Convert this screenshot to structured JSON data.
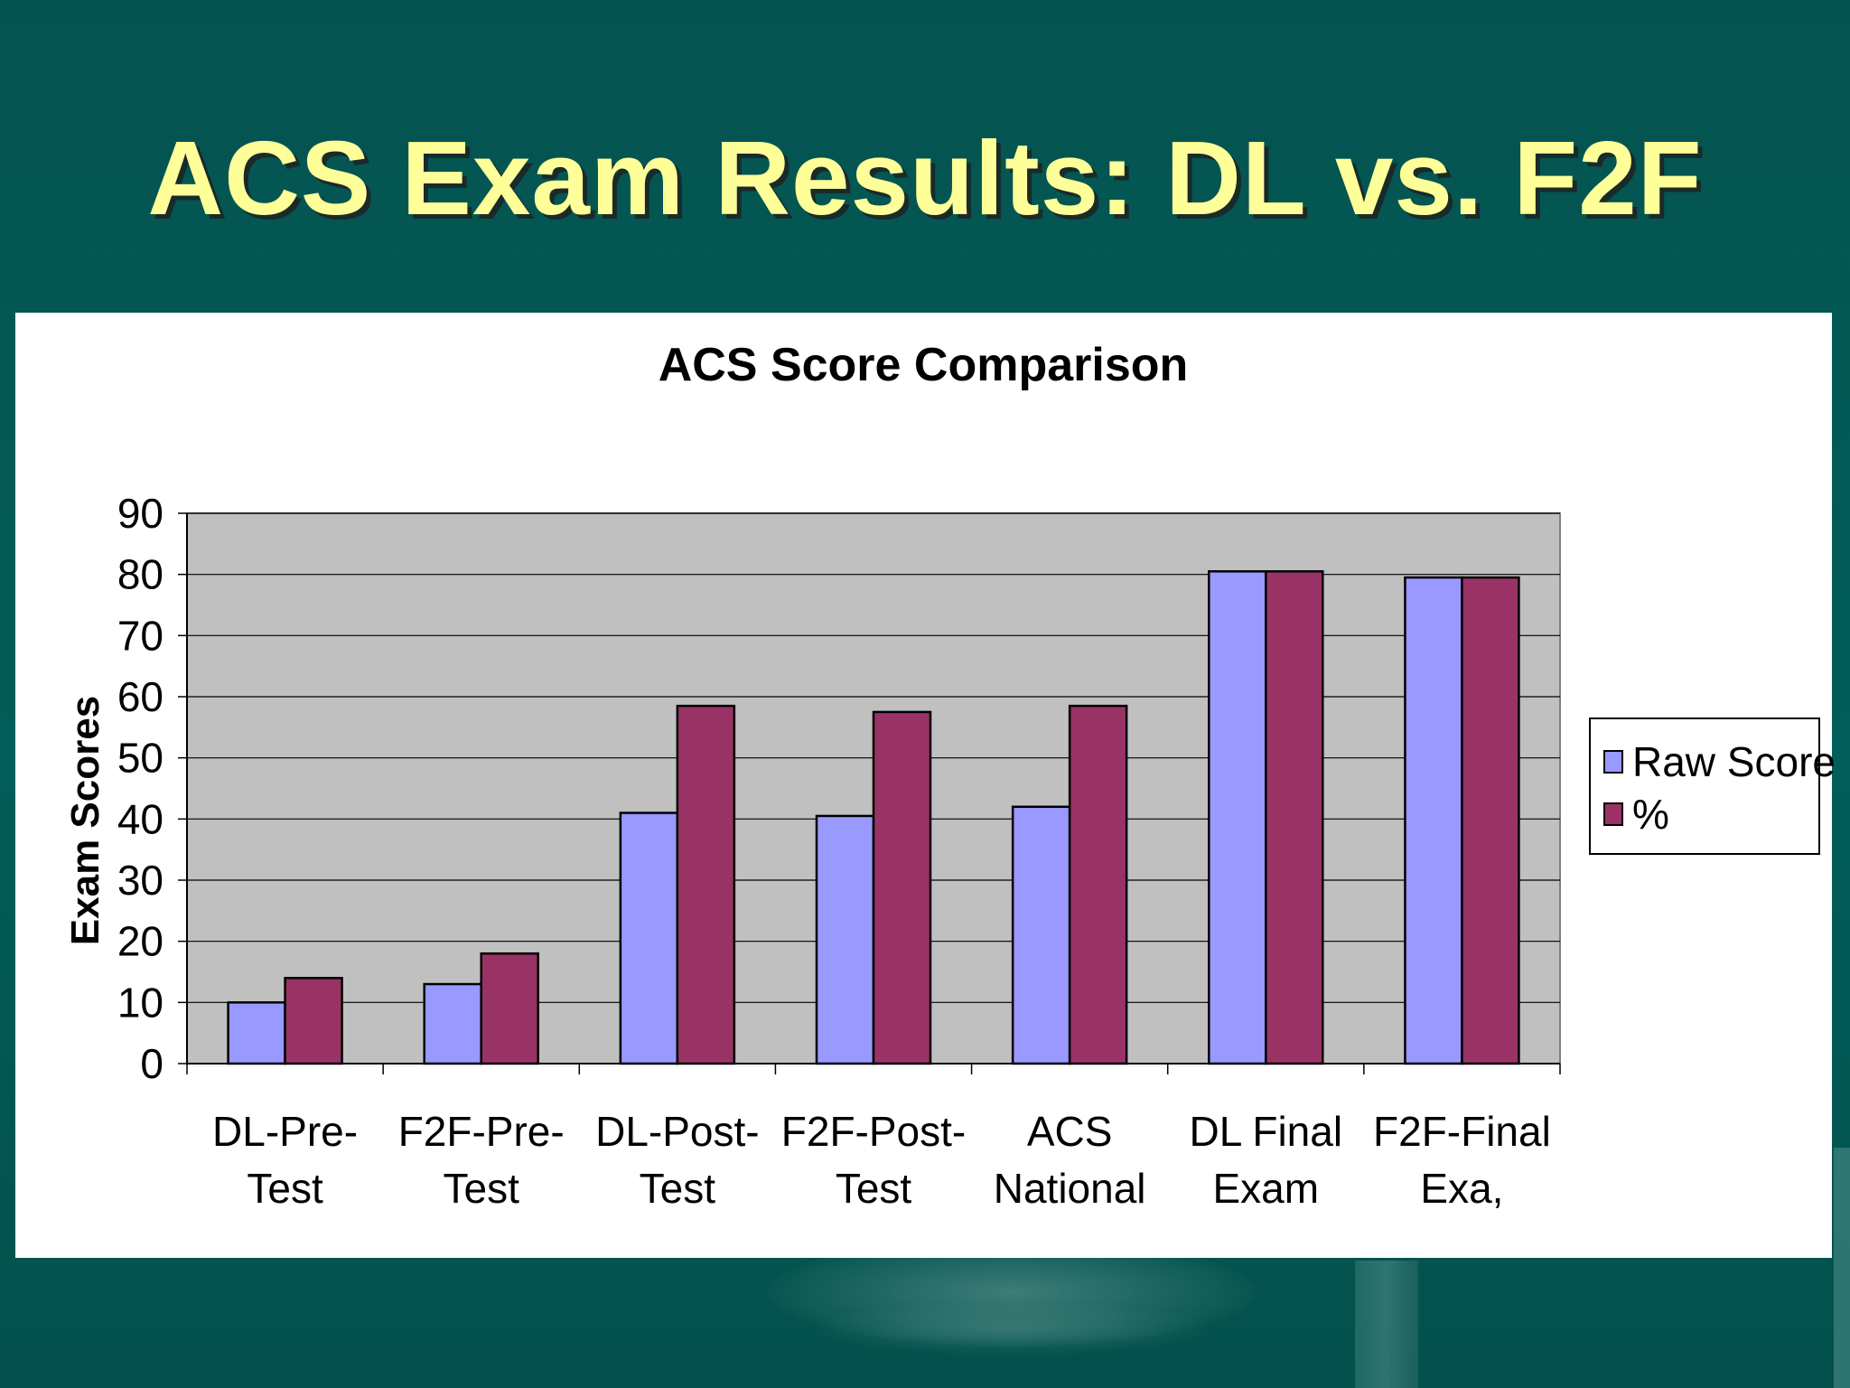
{
  "slide": {
    "title": "ACS Exam Results:  DL vs. F2F"
  },
  "colors": {
    "background": "#03524e",
    "title": "#ffff99",
    "raw_score": "#9999ff",
    "percent": "#993366",
    "plot_area": "#c0c0c0"
  },
  "chart_data": {
    "type": "bar",
    "title": "ACS Score Comparison",
    "ylabel": "Exam Scores",
    "xlabel": "",
    "ylim": [
      0,
      90
    ],
    "yticks": [
      0,
      10,
      20,
      30,
      40,
      50,
      60,
      70,
      80,
      90
    ],
    "grid": true,
    "legend_position": "right",
    "categories": [
      [
        "DL-Pre-",
        "Test"
      ],
      [
        "F2F-Pre-",
        "Test"
      ],
      [
        "DL-Post-",
        "Test"
      ],
      [
        "F2F-Post-",
        "Test"
      ],
      [
        "ACS",
        "National"
      ],
      [
        "DL Final",
        "Exam"
      ],
      [
        "F2F-Final",
        "Exa,"
      ]
    ],
    "series": [
      {
        "name": "Raw Score",
        "color": "#9999ff",
        "values": [
          10,
          13,
          41,
          40.5,
          42,
          80.5,
          79.5
        ]
      },
      {
        "name": "%",
        "color": "#993366",
        "values": [
          14,
          18,
          58.5,
          57.5,
          58.5,
          80.5,
          79.5
        ]
      }
    ]
  }
}
